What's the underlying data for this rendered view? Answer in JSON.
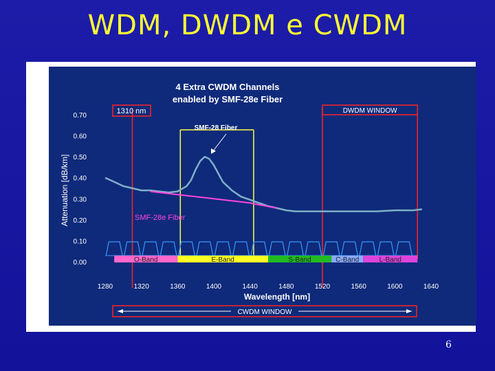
{
  "slide": {
    "title": "WDM, DWDM e CWDM",
    "page_number": "6"
  },
  "colors": {
    "background": "#1a1aa0",
    "title": "#ffff33",
    "plot_bg": "#0f2a7a",
    "curve": "#7fb0c8",
    "smf28e_line": "#ff44dd",
    "yellow_marker": "#ffff44",
    "red_marker": "#ff2222",
    "channel_filter": "#3399ff"
  },
  "chart_data": {
    "type": "line",
    "title_lines": [
      "4 Extra CWDM Channels",
      "enabled by SMF-28e Fiber"
    ],
    "xlabel": "Wavelength [nm]",
    "ylabel": "Attenuation [dB/km]",
    "xlim": [
      1280,
      1640
    ],
    "ylim": [
      0.0,
      0.7
    ],
    "x_ticks": [
      "1280",
      "1320",
      "1360",
      "1400",
      "1440",
      "1480",
      "1520",
      "1560",
      "1600",
      "1640"
    ],
    "y_ticks": [
      "0.00",
      "0.10",
      "0.20",
      "0.30",
      "0.40",
      "0.50",
      "0.60",
      "0.70"
    ],
    "series": [
      {
        "name": "SMF-28 Fiber",
        "x": [
          1280,
          1290,
          1300,
          1310,
          1320,
          1330,
          1340,
          1350,
          1360,
          1370,
          1375,
          1380,
          1385,
          1390,
          1395,
          1400,
          1405,
          1410,
          1420,
          1430,
          1440,
          1450,
          1460,
          1470,
          1480,
          1490,
          1500,
          1520,
          1540,
          1560,
          1580,
          1600,
          1620,
          1630
        ],
        "y": [
          0.4,
          0.38,
          0.36,
          0.35,
          0.34,
          0.34,
          0.335,
          0.33,
          0.335,
          0.36,
          0.39,
          0.44,
          0.48,
          0.5,
          0.49,
          0.46,
          0.42,
          0.38,
          0.34,
          0.31,
          0.295,
          0.28,
          0.265,
          0.255,
          0.245,
          0.24,
          0.24,
          0.24,
          0.24,
          0.24,
          0.24,
          0.245,
          0.245,
          0.25
        ]
      },
      {
        "name": "SMF-28e Fiber",
        "x": [
          1330,
          1360,
          1400,
          1440,
          1470
        ],
        "y": [
          0.335,
          0.32,
          0.3,
          0.28,
          0.255
        ]
      }
    ],
    "annotations": {
      "smf28": "SMF-28 Fiber",
      "smf28e": "SMF-28e Fiber",
      "marker_1310": "1310 nm",
      "dwdm_window": "DWDM WINDOW",
      "cwdm_window": "CWDM WINDOW"
    },
    "markers": {
      "red_lines_nm": [
        1310,
        1520
      ],
      "yellow_lines_nm": [
        1363,
        1444
      ]
    },
    "channels_nm": [
      1290,
      1310,
      1330,
      1350,
      1370,
      1390,
      1410,
      1430,
      1450,
      1470,
      1490,
      1510,
      1530,
      1550,
      1570,
      1590,
      1610
    ],
    "bands": [
      {
        "name": "O-Band",
        "start": 1290,
        "end": 1360,
        "color": "#ff66cc"
      },
      {
        "name": "E-Band",
        "start": 1360,
        "end": 1460,
        "color": "#ffff22"
      },
      {
        "name": "S-Band",
        "start": 1460,
        "end": 1530,
        "color": "#22bb22"
      },
      {
        "name": "C-Band",
        "start": 1530,
        "end": 1565,
        "color": "#88aaff"
      },
      {
        "name": "L-Band",
        "start": 1565,
        "end": 1625,
        "color": "#dd44dd"
      }
    ]
  }
}
